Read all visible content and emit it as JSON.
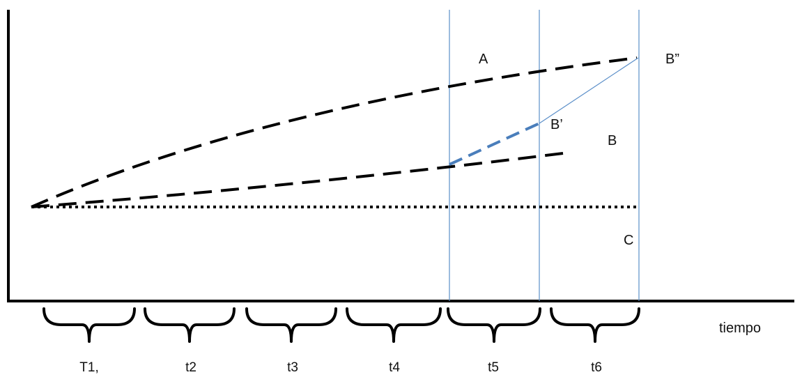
{
  "labels": {
    "region_a": "A",
    "region_b": "B",
    "region_c": "C",
    "point_b_prime": "B’",
    "point_b_double_prime": "B”",
    "x_axis_title": "tiempo"
  },
  "periods": [
    {
      "label": "T1,"
    },
    {
      "label": "t2"
    },
    {
      "label": "t3"
    },
    {
      "label": "t4"
    },
    {
      "label": "t5"
    },
    {
      "label": "t6"
    }
  ],
  "colors": {
    "axis": "#000000",
    "dashed_lines": "#000000",
    "vertical_lines": "#5b8fc9",
    "highlight_dash": "#4a7ebb",
    "text": "#111111"
  }
}
